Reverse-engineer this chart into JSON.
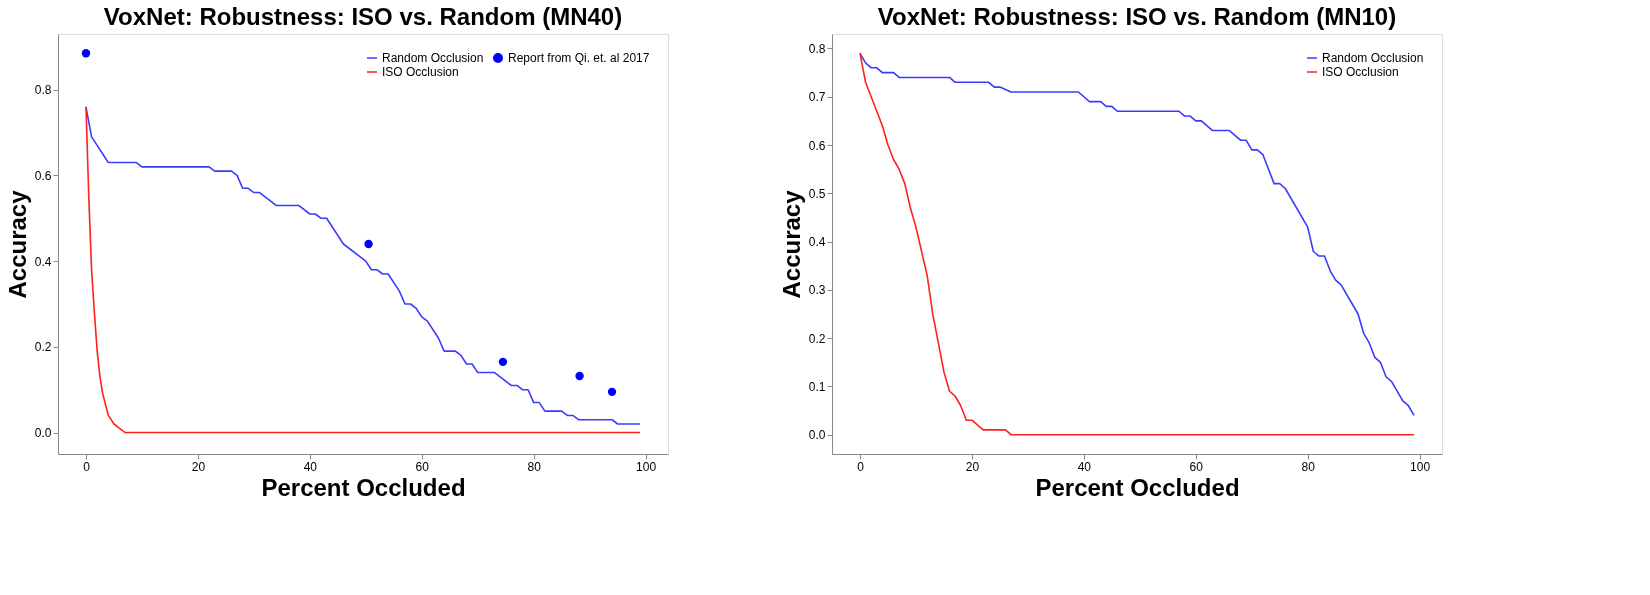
{
  "chart_data": [
    {
      "type": "line",
      "title": "VoxNet: Robustness: ISO vs. Random (MN40)",
      "xlabel": "Percent Occluded",
      "ylabel": "Accuracy",
      "xlim": [
        -5,
        104
      ],
      "ylim": [
        -0.05,
        0.93
      ],
      "xticks": [
        0,
        20,
        40,
        60,
        80,
        100
      ],
      "yticks": [
        {
          "value": 0,
          "label": "0.0"
        },
        {
          "value": 0.2,
          "label": "0.2"
        },
        {
          "value": 0.4,
          "label": "0.4"
        },
        {
          "value": 0.6,
          "label": "0.6"
        },
        {
          "value": 0.8,
          "label": "0.8"
        }
      ],
      "grid": false,
      "legend": "top right",
      "line_style": "solid",
      "series": [
        {
          "name": "Random Occlusion",
          "color": "#3b3bff",
          "x": [
            0,
            1,
            2,
            3,
            4,
            9,
            10,
            22,
            23,
            26,
            27,
            28,
            29,
            30,
            31,
            34,
            38,
            40,
            41,
            42,
            43,
            46,
            50,
            51,
            52,
            53,
            54,
            56,
            57,
            58,
            59,
            60,
            61,
            63,
            64,
            66,
            67,
            68,
            69,
            70,
            73,
            75,
            76,
            77,
            78,
            79,
            80,
            81,
            82,
            85,
            86,
            87,
            88,
            94,
            95,
            99
          ],
          "values": [
            0.76,
            0.69,
            0.67,
            0.65,
            0.63,
            0.63,
            0.62,
            0.62,
            0.61,
            0.61,
            0.6,
            0.57,
            0.57,
            0.56,
            0.56,
            0.53,
            0.53,
            0.51,
            0.51,
            0.5,
            0.5,
            0.44,
            0.4,
            0.38,
            0.38,
            0.37,
            0.37,
            0.33,
            0.3,
            0.3,
            0.29,
            0.27,
            0.26,
            0.22,
            0.19,
            0.19,
            0.18,
            0.16,
            0.16,
            0.14,
            0.14,
            0.12,
            0.11,
            0.11,
            0.1,
            0.1,
            0.07,
            0.07,
            0.05,
            0.05,
            0.04,
            0.04,
            0.03,
            0.03,
            0.02,
            0.02
          ]
        },
        {
          "name": "ISO Occlusion",
          "color": "#ff2020",
          "x": [
            0,
            0.5,
            1,
            1.5,
            2,
            2.5,
            3,
            4,
            5,
            6,
            7,
            99
          ],
          "values": [
            0.76,
            0.55,
            0.38,
            0.28,
            0.19,
            0.13,
            0.09,
            0.04,
            0.02,
            0.01,
            0,
            0
          ]
        },
        {
          "name": "Report from Qi. et. al 2017",
          "color": "#0000ff",
          "type": "scatter",
          "marker": "circle",
          "x": [
            0,
            50.5,
            74.5,
            88.2,
            94
          ],
          "values": [
            0.885,
            0.44,
            0.165,
            0.132,
            0.095
          ]
        }
      ]
    },
    {
      "type": "line",
      "title": "VoxNet: Robustness: ISO vs. Random (MN10)",
      "xlabel": "Percent Occluded",
      "ylabel": "Accuracy",
      "xlim": [
        -5,
        104
      ],
      "ylim": [
        -0.04,
        0.83
      ],
      "xticks": [
        0,
        20,
        40,
        60,
        80,
        100
      ],
      "yticks": [
        {
          "value": 0,
          "label": "0.0"
        },
        {
          "value": 0.1,
          "label": "0.1"
        },
        {
          "value": 0.2,
          "label": "0.2"
        },
        {
          "value": 0.3,
          "label": "0.3"
        },
        {
          "value": 0.4,
          "label": "0.4"
        },
        {
          "value": 0.5,
          "label": "0.5"
        },
        {
          "value": 0.6,
          "label": "0.6"
        },
        {
          "value": 0.7,
          "label": "0.7"
        },
        {
          "value": 0.8,
          "label": "0.8"
        }
      ],
      "grid": false,
      "legend": "top right",
      "line_style": "solid",
      "series": [
        {
          "name": "Random Occlusion",
          "color": "#3b3bff",
          "x": [
            0,
            0.5,
            1,
            2,
            3,
            4,
            6,
            7,
            16,
            17,
            23,
            24,
            25,
            27,
            39,
            40,
            41,
            43,
            44,
            45,
            46,
            57,
            58,
            59,
            60,
            61,
            63,
            66,
            68,
            69,
            70,
            71,
            72,
            74,
            75,
            76,
            80,
            81,
            82,
            83,
            84,
            85,
            86,
            89,
            90,
            91,
            92,
            93,
            94,
            95,
            97,
            98,
            99
          ],
          "values": [
            0.79,
            0.78,
            0.77,
            0.76,
            0.76,
            0.75,
            0.75,
            0.74,
            0.74,
            0.73,
            0.73,
            0.72,
            0.72,
            0.71,
            0.71,
            0.7,
            0.69,
            0.69,
            0.68,
            0.68,
            0.67,
            0.67,
            0.66,
            0.66,
            0.65,
            0.65,
            0.63,
            0.63,
            0.61,
            0.61,
            0.59,
            0.59,
            0.58,
            0.52,
            0.52,
            0.51,
            0.43,
            0.38,
            0.37,
            0.37,
            0.34,
            0.32,
            0.31,
            0.25,
            0.21,
            0.19,
            0.16,
            0.15,
            0.12,
            0.11,
            0.07,
            0.06,
            0.04
          ]
        },
        {
          "name": "ISO Occlusion",
          "color": "#ff2020",
          "x": [
            0,
            0.5,
            1,
            2,
            3,
            4,
            5,
            6,
            7,
            8,
            9,
            10,
            11,
            12,
            13,
            14,
            15,
            16,
            17,
            18,
            19,
            20,
            22,
            26,
            27,
            99
          ],
          "values": [
            0.79,
            0.76,
            0.73,
            0.7,
            0.67,
            0.64,
            0.6,
            0.57,
            0.55,
            0.52,
            0.47,
            0.43,
            0.38,
            0.33,
            0.25,
            0.19,
            0.13,
            0.09,
            0.08,
            0.06,
            0.03,
            0.03,
            0.01,
            0.01,
            0,
            0
          ]
        }
      ]
    }
  ]
}
